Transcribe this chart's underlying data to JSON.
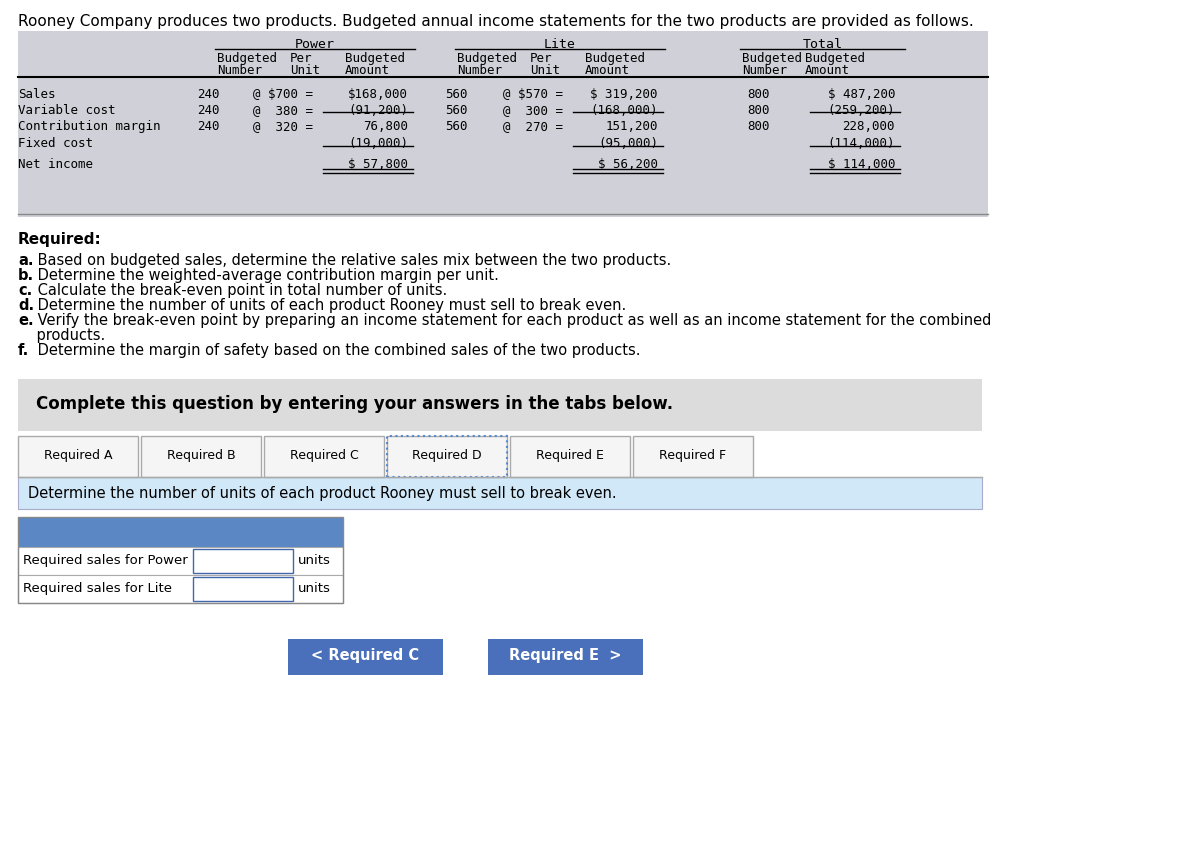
{
  "title": "Rooney Company produces two products. Budgeted annual income statements for the two products are provided as follows.",
  "rows": [
    {
      "label": "Sales",
      "p_num": "240",
      "p_unit": "@ $700 =",
      "p_amt": "$168,000",
      "l_num": "560",
      "l_unit": "@ $570 =",
      "l_amt": "$ 319,200",
      "t_num": "800",
      "t_amt": "$ 487,200"
    },
    {
      "label": "Variable cost",
      "p_num": "240",
      "p_unit": "@  380 =",
      "p_amt": "(91,200)",
      "l_num": "560",
      "l_unit": "@  300 =",
      "l_amt": "(168,000)",
      "t_num": "800",
      "t_amt": "(259,200)"
    },
    {
      "label": "Contribution margin",
      "p_num": "240",
      "p_unit": "@  320 =",
      "p_amt": "76,800",
      "l_num": "560",
      "l_unit": "@  270 =",
      "l_amt": "151,200",
      "t_num": "800",
      "t_amt": "228,000"
    },
    {
      "label": "Fixed cost",
      "p_num": "",
      "p_unit": "",
      "p_amt": "(19,000)",
      "l_num": "",
      "l_unit": "",
      "l_amt": "(95,000)",
      "t_num": "",
      "t_amt": "(114,000)"
    },
    {
      "label": "Net income",
      "p_num": "",
      "p_unit": "",
      "p_amt": "$ 57,800",
      "l_num": "",
      "l_unit": "",
      "l_amt": "$ 56,200",
      "t_num": "",
      "t_amt": "$ 114,000"
    }
  ],
  "required_items": [
    {
      "letter": "a.",
      "text": " Based on budgeted sales, determine the relative sales mix between the two products."
    },
    {
      "letter": "b.",
      "text": " Determine the weighted-average contribution margin per unit."
    },
    {
      "letter": "c.",
      "text": " Calculate the break-even point in total number of units."
    },
    {
      "letter": "d.",
      "text": " Determine the number of units of each product Rooney must sell to break even."
    },
    {
      "letter": "e.",
      "text": " Verify the break-even point by preparing an income statement for each product as well as an income statement for the combined"
    },
    {
      "letter": "",
      "text": "    products."
    },
    {
      "letter": "f.",
      "text": " Determine the margin of safety based on the combined sales of the two products."
    }
  ],
  "complete_text": "Complete this question by entering your answers in the tabs below.",
  "tabs": [
    "Required A",
    "Required B",
    "Required C",
    "Required D",
    "Required E",
    "Required F"
  ],
  "active_tab": "Required D",
  "instruction_text": "Determine the number of units of each product Rooney must sell to break even.",
  "input_labels": [
    "Required sales for Power",
    "Required sales for Lite"
  ],
  "input_unit": "units",
  "btn_left": "< Required C",
  "btn_right": "Required E  >",
  "bg_color": "#ffffff",
  "table_header_bg": "#d0d0d8",
  "complete_bg": "#dcdcdc",
  "instruction_bg": "#d0e8f8",
  "input_header_bg": "#5b87c5",
  "input_box_bg": "#ddeeff",
  "btn_color": "#4a6fbb",
  "tab_border": "#aaaaaa",
  "active_tab_border": "#5588cc"
}
